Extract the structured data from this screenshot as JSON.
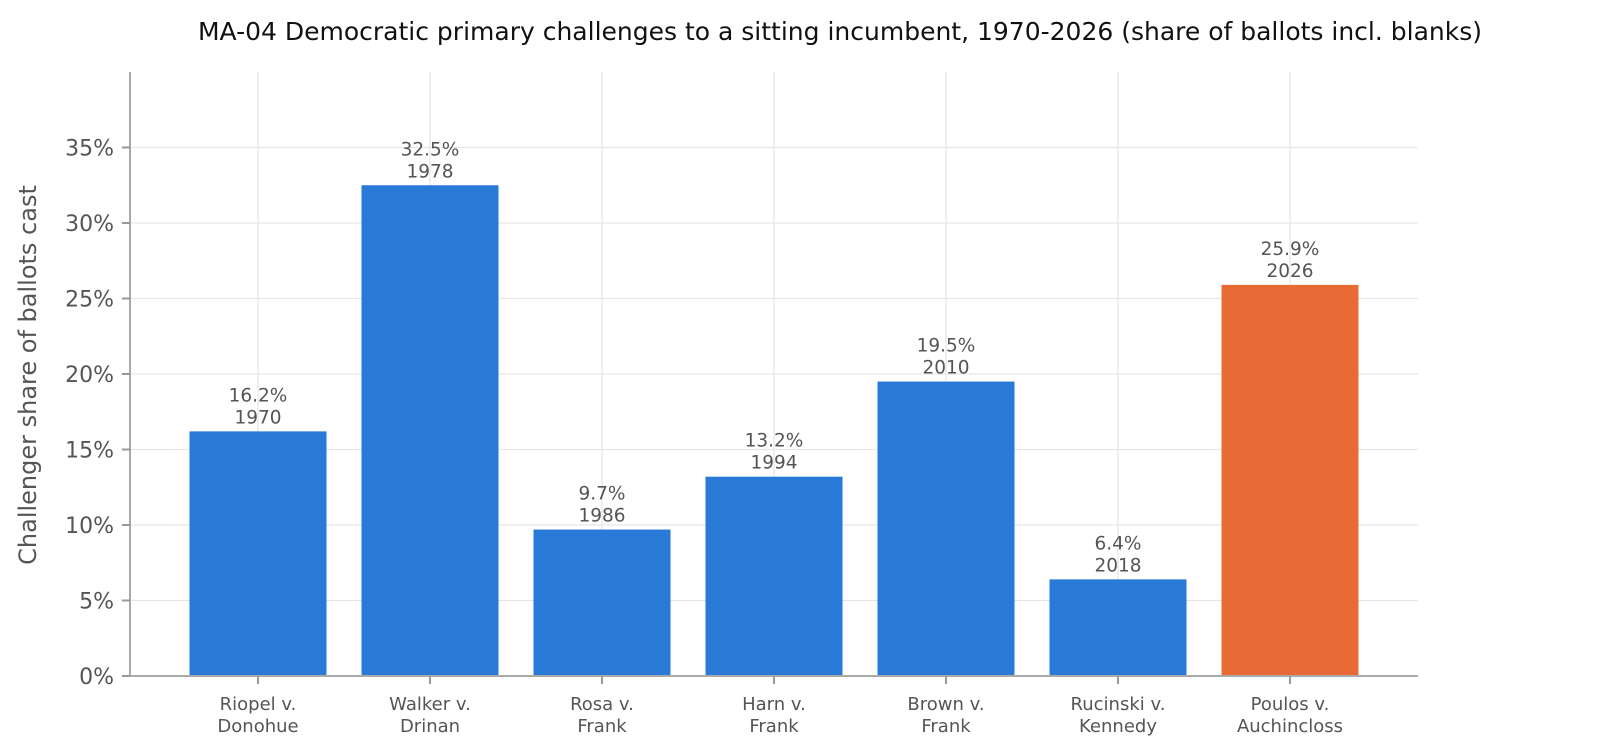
{
  "chart_data": {
    "type": "bar",
    "title": "MA-04 Democratic primary challenges to a sitting incumbent, 1970-2026 (share of ballots incl. blanks)",
    "xlabel": "",
    "ylabel": "Challenger share of ballots cast",
    "ylim": [
      0,
      40
    ],
    "yticks": [
      0,
      5,
      10,
      15,
      20,
      25,
      30,
      35
    ],
    "ytick_labels": [
      "0%",
      "5%",
      "10%",
      "15%",
      "20%",
      "25%",
      "30%",
      "35%"
    ],
    "grid": true,
    "categories": [
      [
        "Riopel v.",
        "Donohue"
      ],
      [
        "Walker v.",
        "Drinan"
      ],
      [
        "Rosa v.",
        "Frank"
      ],
      [
        "Harn v.",
        "Frank"
      ],
      [
        "Brown v.",
        "Frank"
      ],
      [
        "Rucinski v.",
        "Kennedy"
      ],
      [
        "Poulos v.",
        "Auchincloss"
      ]
    ],
    "values": [
      16.2,
      32.5,
      9.7,
      13.2,
      19.5,
      6.4,
      25.9
    ],
    "value_labels": [
      "16.2%",
      "32.5%",
      "9.7%",
      "13.2%",
      "19.5%",
      "6.4%",
      "25.9%"
    ],
    "years": [
      "1970",
      "1978",
      "1986",
      "1994",
      "2010",
      "2018",
      "2026"
    ],
    "colors": [
      "#2979d6",
      "#2979d6",
      "#2979d6",
      "#2979d6",
      "#2979d6",
      "#2979d6",
      "#e86a35"
    ]
  }
}
